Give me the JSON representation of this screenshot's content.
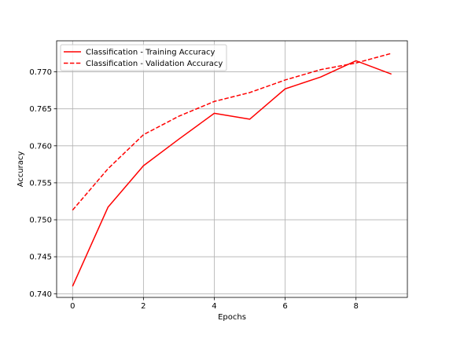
{
  "chart_data": {
    "type": "line",
    "title": "",
    "xlabel": "Epochs",
    "ylabel": "Accuracy",
    "xlim": [
      -0.45,
      9.45
    ],
    "ylim": [
      0.7395,
      0.7742
    ],
    "xticks": [
      0,
      2,
      4,
      6,
      8
    ],
    "xtick_labels": [
      "0",
      "2",
      "4",
      "6",
      "8"
    ],
    "yticks": [
      0.74,
      0.745,
      0.75,
      0.755,
      0.76,
      0.765,
      0.77
    ],
    "ytick_labels": [
      "0.740",
      "0.745",
      "0.750",
      "0.755",
      "0.760",
      "0.765",
      "0.770"
    ],
    "grid": true,
    "legend_position": "top-left",
    "x": [
      0,
      1,
      2,
      3,
      4,
      5,
      6,
      7,
      8,
      9
    ],
    "series": [
      {
        "name": "Classification - Training Accuracy",
        "style": "solid",
        "color": "#ff0000",
        "values": [
          0.741,
          0.7517,
          0.7573,
          0.7609,
          0.7644,
          0.7636,
          0.7677,
          0.7693,
          0.7715,
          0.7697
        ]
      },
      {
        "name": "Classification - Validation Accuracy",
        "style": "dashed",
        "color": "#ff0000",
        "values": [
          0.7513,
          0.7569,
          0.7615,
          0.764,
          0.766,
          0.7672,
          0.7689,
          0.7703,
          0.7712,
          0.7725
        ]
      }
    ]
  }
}
